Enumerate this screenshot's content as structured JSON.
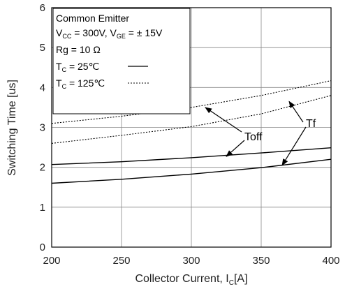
{
  "chart_data": {
    "type": "line",
    "xlabel": "Collector Current, I_C[A]",
    "xlabel_parts": {
      "main": "Collector Current, I",
      "sub": "C",
      "unit": "[A]"
    },
    "ylabel": "Switching Time [us]",
    "xlim": [
      200,
      400
    ],
    "ylim": [
      0,
      6
    ],
    "x_ticks": [
      200,
      250,
      300,
      350,
      400
    ],
    "y_ticks": [
      0,
      1,
      2,
      3,
      4,
      5,
      6
    ],
    "grid": true,
    "legend_box": {
      "line1": "Common Emitter",
      "line2": {
        "a": "V",
        "a_sub": "CC",
        "b": " = 300V, V",
        "b_sub": "GE",
        "c": " = ±  15V"
      },
      "line3": "Rg = 10 Ω",
      "line4": {
        "a": "T",
        "a_sub": "C",
        "b": " =   25℃"
      },
      "line5": {
        "a": "T",
        "a_sub": "C",
        "b": " = 125℃"
      }
    },
    "series": [
      {
        "key": "toff_25",
        "style": "solid",
        "x": [
          200,
          250,
          300,
          350,
          400
        ],
        "values": [
          2.07,
          2.14,
          2.24,
          2.36,
          2.49
        ]
      },
      {
        "key": "tf_25",
        "style": "solid",
        "x": [
          200,
          250,
          300,
          350,
          400
        ],
        "values": [
          1.6,
          1.7,
          1.83,
          1.99,
          2.2
        ]
      },
      {
        "key": "toff_125",
        "style": "dashed",
        "x": [
          200,
          250,
          300,
          350,
          400
        ],
        "values": [
          3.1,
          3.28,
          3.5,
          3.8,
          4.17
        ]
      },
      {
        "key": "tf_125",
        "style": "dashed",
        "x": [
          200,
          250,
          300,
          350,
          400
        ],
        "values": [
          2.6,
          2.8,
          3.02,
          3.34,
          3.8
        ]
      }
    ],
    "annotations": [
      {
        "text": "Toff",
        "targets": [
          [
            310,
            3.5
          ],
          [
            325,
            2.27
          ]
        ]
      },
      {
        "text": "Tf",
        "targets": [
          [
            370,
            3.65
          ],
          [
            365,
            2.05
          ]
        ]
      }
    ]
  }
}
